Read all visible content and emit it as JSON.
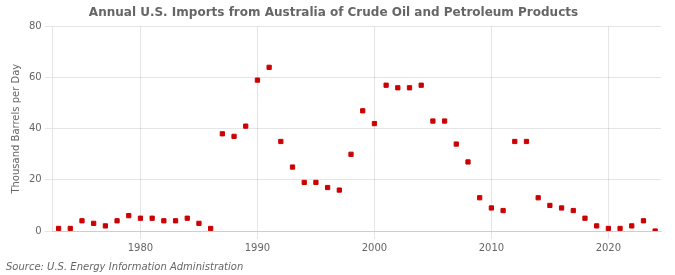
{
  "chart_data": {
    "type": "scatter",
    "title": "Annual U.S. Imports from Australia of Crude Oil and Petroleum Products",
    "y_label": "Thousand Barrels per Day",
    "annotations": [
      "Source: U.S. Energy Information Administration"
    ],
    "x": [
      1973,
      1974,
      1975,
      1976,
      1977,
      1978,
      1979,
      1980,
      1981,
      1982,
      1983,
      1984,
      1985,
      1986,
      1987,
      1988,
      1989,
      1990,
      1991,
      1992,
      1993,
      1994,
      1995,
      1996,
      1997,
      1998,
      1999,
      2000,
      2001,
      2002,
      2003,
      2004,
      2005,
      2006,
      2007,
      2008,
      2009,
      2010,
      2011,
      2012,
      2013,
      2014,
      2015,
      2016,
      2017,
      2018,
      2019,
      2020,
      2021,
      2022,
      2023,
      2024
    ],
    "values": [
      1,
      1,
      4,
      3,
      2,
      4,
      6,
      5,
      5,
      4,
      4,
      5,
      3,
      1,
      38,
      37,
      41,
      59,
      64,
      35,
      25,
      19,
      19,
      17,
      16,
      30,
      47,
      42,
      57,
      56,
      56,
      57,
      43,
      43,
      34,
      27,
      13,
      9,
      8,
      35,
      35,
      13,
      10,
      9,
      8,
      5,
      2,
      1,
      1,
      2,
      4,
      0
    ],
    "color": "#cc0000",
    "marker": "square",
    "xlim": [
      1972.5,
      2024.5
    ],
    "xticks": [
      1980,
      1990,
      2000,
      2010,
      2020
    ],
    "ylim": [
      0,
      80
    ],
    "yticks": [
      0,
      20,
      40,
      60,
      80
    ],
    "grid": true
  }
}
